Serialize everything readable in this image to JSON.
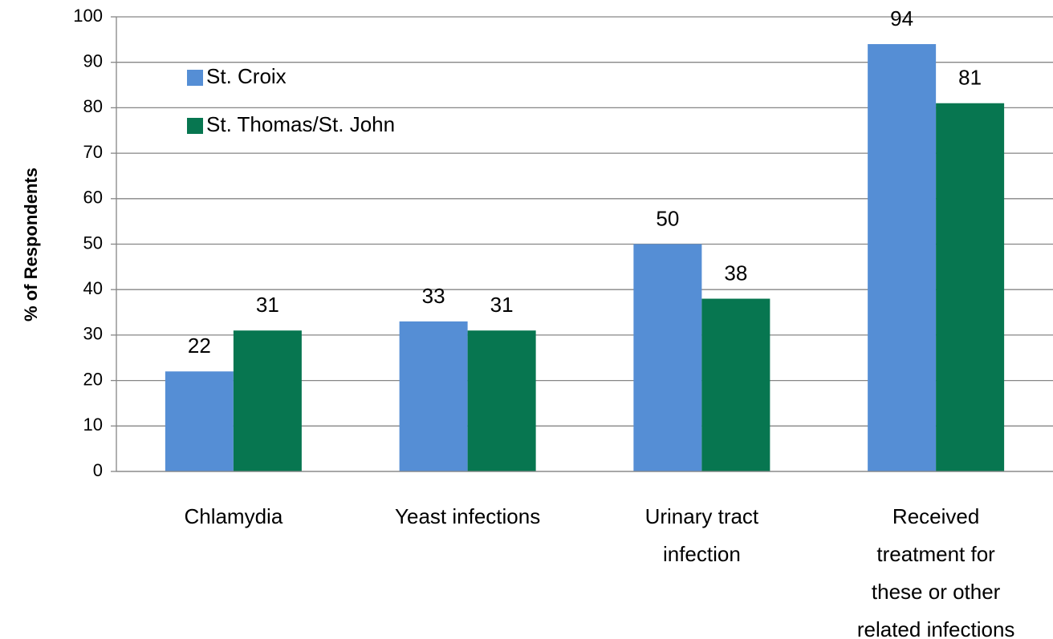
{
  "chart_data": {
    "type": "bar",
    "y_label": "% of Respondents",
    "categories": [
      "Chlamydia",
      "Yeast infections",
      "Urinary tract\ninfection",
      "Received\ntreatment for\nthese or other\nrelated infections"
    ],
    "series": [
      {
        "name": "St. Croix",
        "color": "#558ed5",
        "values": [
          22,
          33,
          50,
          94
        ]
      },
      {
        "name": "St. Thomas/St. John",
        "color": "#077650",
        "values": [
          31,
          31,
          38,
          81
        ]
      }
    ],
    "ylim": [
      0,
      100
    ],
    "yticks": [
      0,
      10,
      20,
      30,
      40,
      50,
      60,
      70,
      80,
      90,
      100
    ],
    "grid": true,
    "legend": "top-left"
  }
}
